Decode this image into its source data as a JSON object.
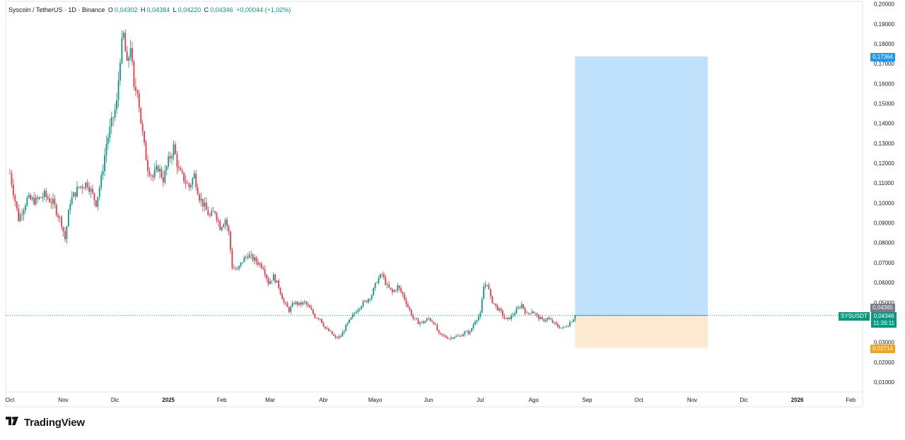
{
  "header": {
    "symbol": "Syscoin / TetherUS · 1D · Binance",
    "open_label": "O",
    "open": "0,04302",
    "high_label": "H",
    "high": "0,04384",
    "low_label": "L",
    "low": "0,04220",
    "close_label": "C",
    "close": "0,04346",
    "change": "+0,00044 (+1,02%)"
  },
  "price_tags": {
    "target": "0,17364",
    "prev": "0,04365",
    "symbol": "SYSUSDT",
    "current": "0,04346",
    "countdown": "11:26:11",
    "stop": "0,02714"
  },
  "colors": {
    "up": "#089981",
    "down": "#f23645",
    "profit_zone": "#bfe1fb",
    "loss_zone": "#fde9cf",
    "target_tag": "#2196f3",
    "stop_tag": "#f7a21b",
    "prev_tag": "#787b86"
  },
  "footer": {
    "brand": "TradingView",
    "logo_icon": "tradingview-logo-icon"
  },
  "chart_data": {
    "type": "candlestick",
    "series": "Syscoin / TetherUS",
    "interval": "1D",
    "y_axis_ticks": [
      "0,20000",
      "0,19000",
      "0,18000",
      "0,17000",
      "0,16000",
      "0,15000",
      "0,14000",
      "0,13000",
      "0,12000",
      "0,11000",
      "0,10000",
      "0,09000",
      "0,08000",
      "0,07000",
      "0,06000",
      "0,05000",
      "0,04000",
      "0,03000",
      "0,02000",
      "0,01000"
    ],
    "y_values": [
      0.2,
      0.19,
      0.18,
      0.17,
      0.16,
      0.15,
      0.14,
      0.13,
      0.12,
      0.11,
      0.1,
      0.09,
      0.08,
      0.07,
      0.06,
      0.05,
      0.04,
      0.03,
      0.02,
      0.01
    ],
    "x_axis_ticks": [
      "Oct",
      "Nov",
      "Dic",
      "2025",
      "Feb",
      "Mar",
      "Abr",
      "Mayo",
      "Jun",
      "Jul",
      "Ago",
      "Sep",
      "Oct",
      "Nov",
      "Dic",
      "2026",
      "Feb"
    ],
    "x_tick_days": [
      0,
      31,
      61,
      92,
      123,
      151,
      182,
      212,
      243,
      273,
      304,
      335,
      365,
      396,
      426,
      457,
      488
    ],
    "price_path": [
      [
        0,
        0.115
      ],
      [
        5,
        0.092
      ],
      [
        10,
        0.102
      ],
      [
        15,
        0.101
      ],
      [
        20,
        0.104
      ],
      [
        25,
        0.1
      ],
      [
        30,
        0.09
      ],
      [
        32,
        0.082
      ],
      [
        35,
        0.101
      ],
      [
        40,
        0.108
      ],
      [
        45,
        0.11
      ],
      [
        50,
        0.1
      ],
      [
        53,
        0.112
      ],
      [
        56,
        0.13
      ],
      [
        59,
        0.14
      ],
      [
        62,
        0.15
      ],
      [
        64,
        0.174
      ],
      [
        66,
        0.184
      ],
      [
        68,
        0.168
      ],
      [
        70,
        0.18
      ],
      [
        72,
        0.156
      ],
      [
        74,
        0.158
      ],
      [
        76,
        0.141
      ],
      [
        78,
        0.128
      ],
      [
        80,
        0.118
      ],
      [
        83,
        0.113
      ],
      [
        86,
        0.118
      ],
      [
        89,
        0.112
      ],
      [
        92,
        0.121
      ],
      [
        95,
        0.128
      ],
      [
        98,
        0.116
      ],
      [
        101,
        0.112
      ],
      [
        104,
        0.108
      ],
      [
        107,
        0.114
      ],
      [
        110,
        0.103
      ],
      [
        113,
        0.098
      ],
      [
        116,
        0.093
      ],
      [
        119,
        0.096
      ],
      [
        122,
        0.088
      ],
      [
        125,
        0.092
      ],
      [
        127,
        0.085
      ],
      [
        129,
        0.068
      ],
      [
        132,
        0.066
      ],
      [
        135,
        0.071
      ],
      [
        138,
        0.074
      ],
      [
        141,
        0.072
      ],
      [
        144,
        0.07
      ],
      [
        147,
        0.068
      ],
      [
        150,
        0.06
      ],
      [
        153,
        0.063
      ],
      [
        156,
        0.058
      ],
      [
        159,
        0.05
      ],
      [
        162,
        0.046
      ],
      [
        165,
        0.05
      ],
      [
        168,
        0.049
      ],
      [
        171,
        0.05
      ],
      [
        174,
        0.047
      ],
      [
        177,
        0.043
      ],
      [
        180,
        0.042
      ],
      [
        183,
        0.037
      ],
      [
        186,
        0.035
      ],
      [
        189,
        0.032
      ],
      [
        192,
        0.033
      ],
      [
        195,
        0.038
      ],
      [
        198,
        0.042
      ],
      [
        201,
        0.046
      ],
      [
        204,
        0.049
      ],
      [
        207,
        0.051
      ],
      [
        210,
        0.054
      ],
      [
        213,
        0.061
      ],
      [
        216,
        0.064
      ],
      [
        219,
        0.058
      ],
      [
        222,
        0.055
      ],
      [
        225,
        0.058
      ],
      [
        228,
        0.054
      ],
      [
        231,
        0.048
      ],
      [
        234,
        0.042
      ],
      [
        237,
        0.04
      ],
      [
        240,
        0.04
      ],
      [
        243,
        0.042
      ],
      [
        246,
        0.04
      ],
      [
        249,
        0.034
      ],
      [
        252,
        0.033
      ],
      [
        255,
        0.032
      ],
      [
        258,
        0.033
      ],
      [
        261,
        0.033
      ],
      [
        264,
        0.035
      ],
      [
        267,
        0.035
      ],
      [
        270,
        0.041
      ],
      [
        273,
        0.044
      ],
      [
        275,
        0.058
      ],
      [
        277,
        0.06
      ],
      [
        279,
        0.052
      ],
      [
        282,
        0.048
      ],
      [
        285,
        0.045
      ],
      [
        288,
        0.041
      ],
      [
        291,
        0.043
      ],
      [
        294,
        0.046
      ],
      [
        297,
        0.049
      ],
      [
        300,
        0.044
      ],
      [
        303,
        0.046
      ],
      [
        306,
        0.043
      ],
      [
        309,
        0.041
      ],
      [
        312,
        0.042
      ],
      [
        315,
        0.04
      ],
      [
        318,
        0.038
      ],
      [
        321,
        0.037
      ],
      [
        324,
        0.039
      ],
      [
        327,
        0.042
      ],
      [
        328,
        0.04346
      ]
    ],
    "last_close": 0.04346,
    "position": {
      "type": "long",
      "entry": 0.04346,
      "target": 0.17364,
      "stop": 0.02714,
      "start_day": 328,
      "end_day": 405
    }
  }
}
